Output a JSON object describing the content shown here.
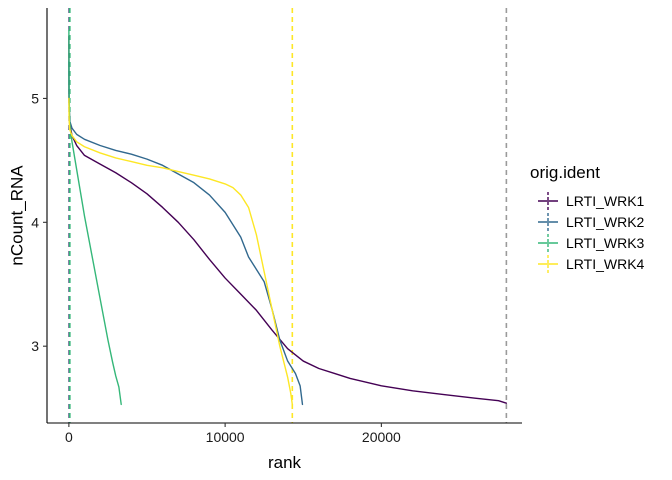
{
  "chart_data": {
    "type": "line",
    "title": "",
    "xlabel": "rank",
    "ylabel": "nCount_RNA",
    "xlim": [
      -1400,
      29000
    ],
    "ylim": [
      2.38,
      5.73
    ],
    "x_ticks": [
      0,
      10000,
      20000
    ],
    "x_tick_labels": [
      "0",
      "10000",
      "20000"
    ],
    "y_ticks": [
      3,
      4,
      5
    ],
    "y_tick_labels": [
      "3",
      "4",
      "5"
    ],
    "grid": false,
    "legend": {
      "title": "orig.ident",
      "position": "right"
    },
    "series": [
      {
        "name": "LRTI_WRK1",
        "color": "#440154",
        "points": [
          [
            1,
            5.5
          ],
          [
            10,
            5.0
          ],
          [
            50,
            4.8
          ],
          [
            200,
            4.7
          ],
          [
            500,
            4.62
          ],
          [
            1000,
            4.54
          ],
          [
            2000,
            4.47
          ],
          [
            3000,
            4.4
          ],
          [
            4000,
            4.32
          ],
          [
            5000,
            4.23
          ],
          [
            6000,
            4.12
          ],
          [
            7000,
            4.0
          ],
          [
            8000,
            3.86
          ],
          [
            9000,
            3.7
          ],
          [
            10000,
            3.55
          ],
          [
            11000,
            3.42
          ],
          [
            12000,
            3.29
          ],
          [
            13000,
            3.13
          ],
          [
            14000,
            2.98
          ],
          [
            15000,
            2.88
          ],
          [
            16000,
            2.82
          ],
          [
            17000,
            2.78
          ],
          [
            18000,
            2.74
          ],
          [
            20000,
            2.68
          ],
          [
            22000,
            2.64
          ],
          [
            24000,
            2.61
          ],
          [
            26000,
            2.58
          ],
          [
            27500,
            2.56
          ],
          [
            28000,
            2.54
          ]
        ]
      },
      {
        "name": "LRTI_WRK2",
        "color": "#31688E",
        "points": [
          [
            1,
            5.3
          ],
          [
            10,
            4.95
          ],
          [
            50,
            4.82
          ],
          [
            200,
            4.76
          ],
          [
            500,
            4.71
          ],
          [
            1000,
            4.67
          ],
          [
            2000,
            4.62
          ],
          [
            3000,
            4.58
          ],
          [
            4000,
            4.55
          ],
          [
            5000,
            4.51
          ],
          [
            6000,
            4.46
          ],
          [
            7000,
            4.39
          ],
          [
            8000,
            4.32
          ],
          [
            9000,
            4.22
          ],
          [
            10000,
            4.08
          ],
          [
            11000,
            3.88
          ],
          [
            11500,
            3.72
          ],
          [
            12000,
            3.62
          ],
          [
            12500,
            3.52
          ],
          [
            13000,
            3.3
          ],
          [
            13500,
            3.05
          ],
          [
            14000,
            2.88
          ],
          [
            14500,
            2.78
          ],
          [
            14800,
            2.68
          ],
          [
            14950,
            2.53
          ]
        ]
      },
      {
        "name": "LRTI_WRK3",
        "color": "#35B779",
        "points": [
          [
            1,
            5.55
          ],
          [
            10,
            5.1
          ],
          [
            50,
            4.8
          ],
          [
            200,
            4.65
          ],
          [
            400,
            4.5
          ],
          [
            600,
            4.35
          ],
          [
            800,
            4.2
          ],
          [
            1000,
            4.05
          ],
          [
            1300,
            3.85
          ],
          [
            1600,
            3.65
          ],
          [
            1900,
            3.45
          ],
          [
            2200,
            3.25
          ],
          [
            2500,
            3.05
          ],
          [
            2800,
            2.87
          ],
          [
            3000,
            2.76
          ],
          [
            3200,
            2.67
          ],
          [
            3350,
            2.53
          ]
        ]
      },
      {
        "name": "LRTI_WRK4",
        "color": "#FDE725",
        "points": [
          [
            1,
            5.0
          ],
          [
            10,
            4.85
          ],
          [
            50,
            4.75
          ],
          [
            200,
            4.7
          ],
          [
            500,
            4.65
          ],
          [
            1000,
            4.61
          ],
          [
            2000,
            4.56
          ],
          [
            3000,
            4.52
          ],
          [
            4000,
            4.49
          ],
          [
            5000,
            4.46
          ],
          [
            6000,
            4.44
          ],
          [
            7000,
            4.41
          ],
          [
            8000,
            4.38
          ],
          [
            9000,
            4.35
          ],
          [
            10000,
            4.31
          ],
          [
            10500,
            4.28
          ],
          [
            11000,
            4.22
          ],
          [
            11500,
            4.12
          ],
          [
            12000,
            3.9
          ],
          [
            12500,
            3.6
          ],
          [
            13000,
            3.3
          ],
          [
            13500,
            3.0
          ],
          [
            14000,
            2.75
          ],
          [
            14200,
            2.62
          ],
          [
            14300,
            2.53
          ]
        ]
      }
    ],
    "vlines": [
      {
        "x": 28000,
        "color": "#9a9a9a",
        "style": "dashed"
      },
      {
        "x": 14300,
        "color": "#FDE725",
        "style": "dashed"
      },
      {
        "x": 20,
        "color": "#440154",
        "style": "dashed"
      },
      {
        "x": 40,
        "color": "#31688E",
        "style": "dashed"
      },
      {
        "x": 60,
        "color": "#35B779",
        "style": "dashed"
      }
    ]
  }
}
